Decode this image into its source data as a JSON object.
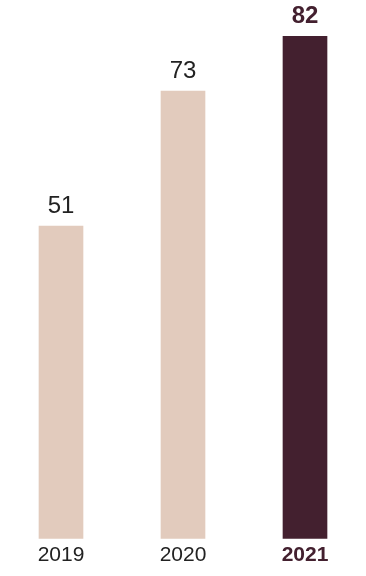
{
  "chart_data": {
    "type": "bar",
    "categories": [
      "2019",
      "2020",
      "2021"
    ],
    "values": [
      51,
      73,
      82
    ],
    "colors": [
      "#e2cbbd",
      "#e2cbbd",
      "#43202f"
    ],
    "ylim": [
      0,
      82
    ],
    "grid": false,
    "data_labels": true,
    "tick_labels": "x"
  }
}
